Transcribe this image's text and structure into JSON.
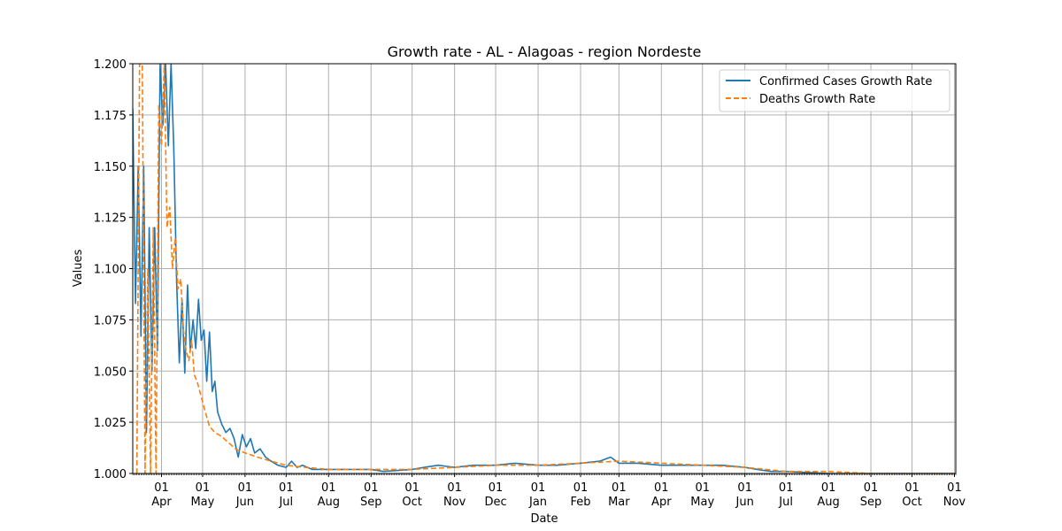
{
  "chart_data": {
    "type": "line",
    "title": "Growth rate - AL - Alagoas - region Nordeste",
    "xlabel": "Date",
    "ylabel": "Values",
    "ylim": [
      1.0,
      1.2
    ],
    "xlim": [
      "2020-03-11",
      "2021-11-02"
    ],
    "grid": true,
    "legend_position": "top-right",
    "y_ticks": [
      "1.000",
      "1.025",
      "1.050",
      "1.075",
      "1.100",
      "1.125",
      "1.150",
      "1.175",
      "1.200"
    ],
    "x_ticks": [
      {
        "date": "2020-04-01",
        "day": "01",
        "month": "Apr"
      },
      {
        "date": "2020-05-01",
        "day": "01",
        "month": "May"
      },
      {
        "date": "2020-06-01",
        "day": "01",
        "month": "Jun"
      },
      {
        "date": "2020-07-01",
        "day": "01",
        "month": "Jul"
      },
      {
        "date": "2020-08-01",
        "day": "01",
        "month": "Aug"
      },
      {
        "date": "2020-09-01",
        "day": "01",
        "month": "Sep"
      },
      {
        "date": "2020-10-01",
        "day": "01",
        "month": "Oct"
      },
      {
        "date": "2020-11-01",
        "day": "01",
        "month": "Nov"
      },
      {
        "date": "2020-12-01",
        "day": "01",
        "month": "Dec"
      },
      {
        "date": "2021-01-01",
        "day": "01",
        "month": "Jan"
      },
      {
        "date": "2021-02-01",
        "day": "01",
        "month": "Feb"
      },
      {
        "date": "2021-03-01",
        "day": "01",
        "month": "Mar"
      },
      {
        "date": "2021-04-01",
        "day": "01",
        "month": "Apr"
      },
      {
        "date": "2021-05-01",
        "day": "01",
        "month": "May"
      },
      {
        "date": "2021-06-01",
        "day": "01",
        "month": "Jun"
      },
      {
        "date": "2021-07-01",
        "day": "01",
        "month": "Jul"
      },
      {
        "date": "2021-08-01",
        "day": "01",
        "month": "Aug"
      },
      {
        "date": "2021-09-01",
        "day": "01",
        "month": "Sep"
      },
      {
        "date": "2021-10-01",
        "day": "01",
        "month": "Oct"
      },
      {
        "date": "2021-11-01",
        "day": "01",
        "month": "Nov"
      }
    ],
    "series": [
      {
        "name": "Confirmed Cases Growth Rate",
        "color": "#1f77b4",
        "style": "solid",
        "points": [
          [
            "2020-03-11",
            1.178
          ],
          [
            "2020-03-13",
            1.083
          ],
          [
            "2020-03-15",
            1.15
          ],
          [
            "2020-03-17",
            1.067
          ],
          [
            "2020-03-19",
            1.15
          ],
          [
            "2020-03-21",
            1.02
          ],
          [
            "2020-03-23",
            1.12
          ],
          [
            "2020-03-25",
            1.05
          ],
          [
            "2020-03-27",
            1.12
          ],
          [
            "2020-03-29",
            1.06
          ],
          [
            "2020-03-31",
            1.2
          ],
          [
            "2020-04-02",
            1.17
          ],
          [
            "2020-04-04",
            1.2
          ],
          [
            "2020-04-06",
            1.16
          ],
          [
            "2020-04-08",
            1.2
          ],
          [
            "2020-04-10",
            1.158
          ],
          [
            "2020-04-12",
            1.095
          ],
          [
            "2020-04-14",
            1.054
          ],
          [
            "2020-04-16",
            1.085
          ],
          [
            "2020-04-18",
            1.049
          ],
          [
            "2020-04-20",
            1.092
          ],
          [
            "2020-04-22",
            1.06
          ],
          [
            "2020-04-24",
            1.075
          ],
          [
            "2020-04-26",
            1.061
          ],
          [
            "2020-04-28",
            1.085
          ],
          [
            "2020-04-30",
            1.065
          ],
          [
            "2020-05-02",
            1.07
          ],
          [
            "2020-05-04",
            1.045
          ],
          [
            "2020-05-06",
            1.069
          ],
          [
            "2020-05-08",
            1.04
          ],
          [
            "2020-05-10",
            1.045
          ],
          [
            "2020-05-12",
            1.03
          ],
          [
            "2020-05-15",
            1.024
          ],
          [
            "2020-05-18",
            1.02
          ],
          [
            "2020-05-21",
            1.022
          ],
          [
            "2020-05-24",
            1.017
          ],
          [
            "2020-05-27",
            1.008
          ],
          [
            "2020-05-30",
            1.019
          ],
          [
            "2020-06-02",
            1.013
          ],
          [
            "2020-06-05",
            1.017
          ],
          [
            "2020-06-08",
            1.01
          ],
          [
            "2020-06-12",
            1.012
          ],
          [
            "2020-06-16",
            1.008
          ],
          [
            "2020-06-20",
            1.006
          ],
          [
            "2020-06-25",
            1.004
          ],
          [
            "2020-07-01",
            1.003
          ],
          [
            "2020-07-05",
            1.006
          ],
          [
            "2020-07-09",
            1.003
          ],
          [
            "2020-07-13",
            1.004
          ],
          [
            "2020-07-20",
            1.002
          ],
          [
            "2020-08-01",
            1.002
          ],
          [
            "2020-08-15",
            1.002
          ],
          [
            "2020-09-01",
            1.002
          ],
          [
            "2020-09-10",
            1.001
          ],
          [
            "2020-10-01",
            1.002
          ],
          [
            "2020-10-10",
            1.003
          ],
          [
            "2020-10-20",
            1.004
          ],
          [
            "2020-11-01",
            1.003
          ],
          [
            "2020-11-15",
            1.004
          ],
          [
            "2020-12-01",
            1.004
          ],
          [
            "2020-12-15",
            1.005
          ],
          [
            "2021-01-01",
            1.004
          ],
          [
            "2021-01-15",
            1.004
          ],
          [
            "2021-02-01",
            1.005
          ],
          [
            "2021-02-15",
            1.006
          ],
          [
            "2021-02-23",
            1.008
          ],
          [
            "2021-03-01",
            1.005
          ],
          [
            "2021-03-15",
            1.005
          ],
          [
            "2021-04-01",
            1.004
          ],
          [
            "2021-04-15",
            1.004
          ],
          [
            "2021-05-01",
            1.004
          ],
          [
            "2021-05-15",
            1.004
          ],
          [
            "2021-06-01",
            1.003
          ],
          [
            "2021-06-10",
            1.002
          ],
          [
            "2021-06-20",
            1.001
          ],
          [
            "2021-07-01",
            1.001
          ],
          [
            "2021-08-01",
            1.0
          ],
          [
            "2021-09-01",
            1.0
          ],
          [
            "2021-10-01",
            1.0
          ],
          [
            "2021-11-01",
            1.0
          ]
        ]
      },
      {
        "name": "Deaths Growth Rate",
        "color": "#ff7f0e",
        "style": "dashed",
        "points": [
          [
            "2020-03-14",
            1.0
          ],
          [
            "2020-03-16",
            1.2
          ],
          [
            "2020-03-18",
            1.2
          ],
          [
            "2020-03-20",
            1.0
          ],
          [
            "2020-03-22",
            1.1
          ],
          [
            "2020-03-24",
            1.0
          ],
          [
            "2020-03-26",
            1.12
          ],
          [
            "2020-03-28",
            1.0
          ],
          [
            "2020-03-30",
            1.18
          ],
          [
            "2020-04-01",
            1.16
          ],
          [
            "2020-04-03",
            1.2
          ],
          [
            "2020-04-05",
            1.12
          ],
          [
            "2020-04-07",
            1.13
          ],
          [
            "2020-04-09",
            1.1
          ],
          [
            "2020-04-11",
            1.115
          ],
          [
            "2020-04-13",
            1.09
          ],
          [
            "2020-04-15",
            1.095
          ],
          [
            "2020-04-17",
            1.07
          ],
          [
            "2020-04-19",
            1.06
          ],
          [
            "2020-04-21",
            1.055
          ],
          [
            "2020-04-23",
            1.065
          ],
          [
            "2020-04-25",
            1.048
          ],
          [
            "2020-04-27",
            1.045
          ],
          [
            "2020-04-29",
            1.04
          ],
          [
            "2020-05-01",
            1.035
          ],
          [
            "2020-05-03",
            1.03
          ],
          [
            "2020-05-06",
            1.023
          ],
          [
            "2020-05-10",
            1.02
          ],
          [
            "2020-05-15",
            1.018
          ],
          [
            "2020-05-20",
            1.015
          ],
          [
            "2020-05-25",
            1.012
          ],
          [
            "2020-06-01",
            1.01
          ],
          [
            "2020-06-10",
            1.008
          ],
          [
            "2020-06-20",
            1.006
          ],
          [
            "2020-07-01",
            1.004
          ],
          [
            "2020-07-15",
            1.003
          ],
          [
            "2020-08-01",
            1.002
          ],
          [
            "2020-09-01",
            1.002
          ],
          [
            "2020-10-01",
            1.002
          ],
          [
            "2020-11-01",
            1.003
          ],
          [
            "2020-12-01",
            1.004
          ],
          [
            "2021-01-01",
            1.004
          ],
          [
            "2021-02-01",
            1.005
          ],
          [
            "2021-03-01",
            1.006
          ],
          [
            "2021-04-01",
            1.005
          ],
          [
            "2021-05-01",
            1.004
          ],
          [
            "2021-06-01",
            1.003
          ],
          [
            "2021-07-01",
            1.001
          ],
          [
            "2021-08-01",
            1.001
          ],
          [
            "2021-09-01",
            1.0
          ],
          [
            "2021-10-01",
            1.0
          ],
          [
            "2021-11-01",
            1.0
          ]
        ]
      }
    ]
  }
}
